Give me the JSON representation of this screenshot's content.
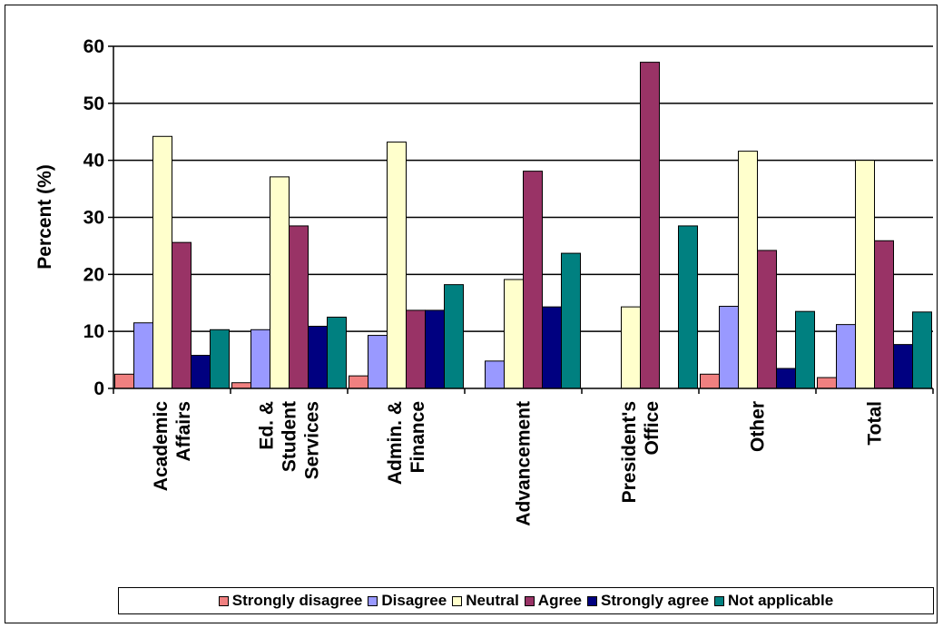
{
  "chart_data": {
    "type": "bar",
    "title": "",
    "xlabel": "",
    "ylabel": "Percent (%)",
    "ylim": [
      0,
      60
    ],
    "yticks": [
      0,
      10,
      20,
      30,
      40,
      50,
      60
    ],
    "grid": true,
    "legend_position": "bottom",
    "categories": [
      [
        "Academic",
        "Affairs"
      ],
      [
        "Ed. &",
        "Student",
        "Services"
      ],
      [
        "Admin. &",
        "Finance"
      ],
      [
        "Advancement"
      ],
      [
        "President's",
        "Office"
      ],
      [
        "Other"
      ],
      [
        "Total"
      ]
    ],
    "series": [
      {
        "name": "Strongly disagree",
        "color": "#F08080",
        "values": [
          2.5,
          1.0,
          2.2,
          0,
          0,
          2.5,
          1.9
        ]
      },
      {
        "name": "Disagree",
        "color": "#9999FF",
        "values": [
          11.5,
          10.3,
          9.3,
          4.8,
          0,
          14.4,
          11.2
        ]
      },
      {
        "name": "Neutral",
        "color": "#FFFFCC",
        "values": [
          44.2,
          37.1,
          43.2,
          19.1,
          14.3,
          41.6,
          40.0
        ]
      },
      {
        "name": "Agree",
        "color": "#993366",
        "values": [
          25.6,
          28.5,
          13.7,
          38.1,
          57.2,
          24.2,
          25.9
        ]
      },
      {
        "name": "Strongly agree",
        "color": "#000080",
        "values": [
          5.8,
          10.9,
          13.7,
          14.3,
          0,
          3.5,
          7.7
        ]
      },
      {
        "name": "Not applicable",
        "color": "#008080",
        "values": [
          10.3,
          12.5,
          18.2,
          23.7,
          28.5,
          13.5,
          13.4
        ]
      }
    ]
  }
}
